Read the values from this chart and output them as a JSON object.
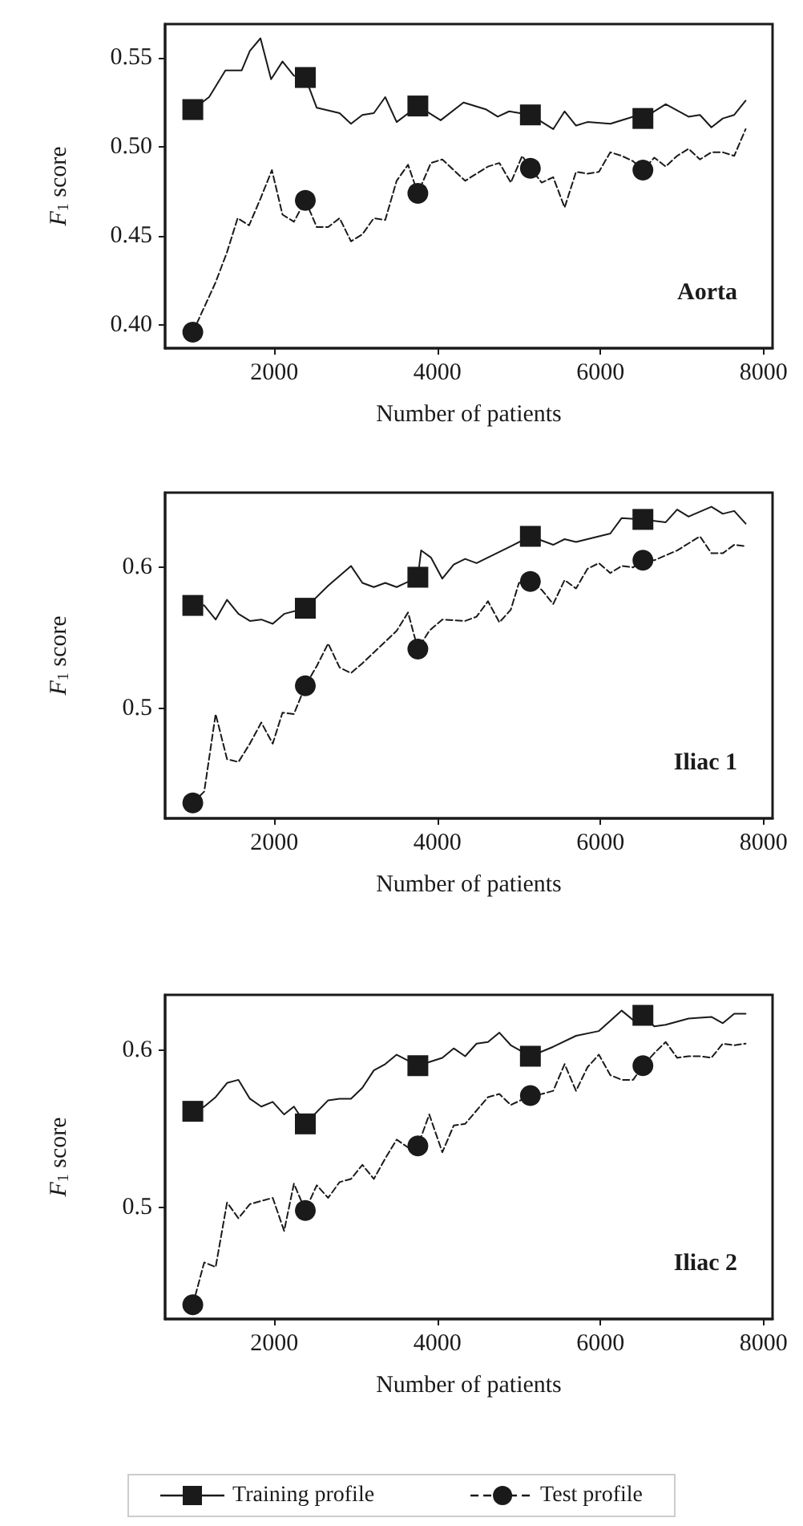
{
  "chart_data": [
    {
      "type": "line",
      "xlabel": "Number of patients",
      "ylabel": "F$_{1}$ score",
      "annotations": [
        "Aorta"
      ],
      "xlim": [
        660,
        8110
      ],
      "xticks": [
        2000,
        4000,
        6000,
        8000
      ],
      "ylim": [
        0.387,
        0.569
      ],
      "yticks": [
        {
          "value": 0.4,
          "label": "0.40"
        },
        {
          "value": 0.45,
          "label": "0.45"
        },
        {
          "value": 0.5,
          "label": "0.50"
        },
        {
          "value": 0.55,
          "label": "0.55"
        }
      ],
      "series": [
        {
          "color": "#1a1a1a",
          "line_style": "solid",
          "x": [
            1000,
            1200,
            1400,
            1600,
            1700,
            1830,
            1960,
            2100,
            2240,
            2380,
            2520,
            2800,
            2940,
            3080,
            3220,
            3360,
            3500,
            3760,
            4040,
            4320,
            4600,
            4740,
            4880,
            5140,
            5420,
            5560,
            5700,
            5840,
            6120,
            6400,
            6520,
            6800,
            7080,
            7220,
            7360,
            7500,
            7640,
            7780
          ],
          "values": [
            0.521,
            0.528,
            0.543,
            0.543,
            0.554,
            0.561,
            0.538,
            0.548,
            0.54,
            0.539,
            0.522,
            0.519,
            0.513,
            0.518,
            0.519,
            0.528,
            0.514,
            0.523,
            0.515,
            0.525,
            0.521,
            0.517,
            0.52,
            0.518,
            0.51,
            0.52,
            0.512,
            0.514,
            0.513,
            0.517,
            0.516,
            0.524,
            0.517,
            0.518,
            0.511,
            0.516,
            0.518,
            0.526
          ]
        },
        {
          "color": "#1a1a1a",
          "line_style": "dashed",
          "x": [
            1000,
            1140,
            1280,
            1420,
            1550,
            1690,
            1830,
            1970,
            2100,
            2240,
            2380,
            2520,
            2660,
            2800,
            2940,
            3080,
            3220,
            3360,
            3500,
            3640,
            3760,
            3920,
            4060,
            4340,
            4620,
            4760,
            4900,
            5040,
            5140,
            5280,
            5420,
            5560,
            5700,
            5840,
            5980,
            6120,
            6260,
            6400,
            6520,
            6660,
            6800,
            6940,
            7080,
            7220,
            7360,
            7500,
            7640,
            7780
          ],
          "values": [
            0.396,
            0.41,
            0.424,
            0.441,
            0.46,
            0.456,
            0.471,
            0.487,
            0.462,
            0.458,
            0.47,
            0.455,
            0.455,
            0.46,
            0.447,
            0.451,
            0.46,
            0.459,
            0.481,
            0.49,
            0.474,
            0.491,
            0.493,
            0.481,
            0.489,
            0.491,
            0.48,
            0.495,
            0.488,
            0.48,
            0.483,
            0.466,
            0.486,
            0.485,
            0.486,
            0.497,
            0.495,
            0.492,
            0.487,
            0.494,
            0.489,
            0.495,
            0.499,
            0.493,
            0.497,
            0.497,
            0.495,
            0.51
          ]
        },
        {
          "type": "scatter",
          "color": "#1a1a1a",
          "marker": "square",
          "x": [
            1000,
            2380,
            3760,
            5140,
            6520
          ],
          "values": [
            0.521,
            0.539,
            0.523,
            0.518,
            0.516
          ]
        },
        {
          "type": "scatter",
          "color": "#1a1a1a",
          "marker": "circle",
          "x": [
            1000,
            2380,
            3760,
            5140,
            6520
          ],
          "values": [
            0.396,
            0.47,
            0.474,
            0.488,
            0.487
          ]
        }
      ]
    },
    {
      "type": "line",
      "xlabel": "Number of patients",
      "ylabel": "F$_{1}$ score",
      "annotations": [
        "Iliac 1"
      ],
      "xlim": [
        660,
        8110
      ],
      "xticks": [
        2000,
        4000,
        6000,
        8000
      ],
      "ylim": [
        0.422,
        0.653
      ],
      "yticks": [
        {
          "value": 0.5,
          "label": "0.5"
        },
        {
          "value": 0.6,
          "label": "0.6"
        }
      ],
      "series": [
        {
          "color": "#1a1a1a",
          "line_style": "solid",
          "x": [
            1000,
            1140,
            1280,
            1420,
            1560,
            1700,
            1840,
            1980,
            2120,
            2380,
            2660,
            2940,
            3080,
            3220,
            3360,
            3500,
            3760,
            3800,
            3920,
            4060,
            4200,
            4340,
            4480,
            4620,
            4900,
            5140,
            5420,
            5560,
            5700,
            6120,
            6260,
            6520,
            6800,
            6940,
            7080,
            7360,
            7500,
            7640,
            7780
          ],
          "values": [
            0.573,
            0.573,
            0.563,
            0.577,
            0.567,
            0.562,
            0.563,
            0.56,
            0.567,
            0.571,
            0.587,
            0.601,
            0.589,
            0.586,
            0.589,
            0.586,
            0.593,
            0.612,
            0.607,
            0.592,
            0.602,
            0.606,
            0.603,
            0.607,
            0.615,
            0.622,
            0.616,
            0.62,
            0.618,
            0.624,
            0.635,
            0.634,
            0.632,
            0.641,
            0.636,
            0.643,
            0.638,
            0.64,
            0.631
          ]
        },
        {
          "color": "#1a1a1a",
          "line_style": "dashed",
          "x": [
            1000,
            1140,
            1280,
            1420,
            1560,
            1700,
            1840,
            1980,
            2100,
            2240,
            2380,
            2520,
            2660,
            2800,
            2940,
            3080,
            3500,
            3640,
            3760,
            3900,
            4060,
            4340,
            4480,
            4620,
            4760,
            4900,
            5000,
            5140,
            5280,
            5420,
            5560,
            5700,
            5840,
            5980,
            6120,
            6260,
            6400,
            6520,
            6660,
            6940,
            7220,
            7360,
            7500,
            7640,
            7780
          ],
          "values": [
            0.433,
            0.441,
            0.496,
            0.464,
            0.462,
            0.475,
            0.49,
            0.475,
            0.497,
            0.496,
            0.516,
            0.53,
            0.546,
            0.529,
            0.525,
            0.532,
            0.555,
            0.568,
            0.542,
            0.555,
            0.563,
            0.562,
            0.565,
            0.576,
            0.561,
            0.57,
            0.589,
            0.59,
            0.584,
            0.574,
            0.591,
            0.585,
            0.599,
            0.603,
            0.596,
            0.601,
            0.6,
            0.605,
            0.605,
            0.612,
            0.622,
            0.61,
            0.61,
            0.616,
            0.615
          ]
        },
        {
          "type": "scatter",
          "color": "#1a1a1a",
          "marker": "square",
          "x": [
            1000,
            2380,
            3760,
            5140,
            6520
          ],
          "values": [
            0.573,
            0.571,
            0.593,
            0.622,
            0.634
          ]
        },
        {
          "type": "scatter",
          "color": "#1a1a1a",
          "marker": "circle",
          "x": [
            1000,
            2380,
            3760,
            5140,
            6520
          ],
          "values": [
            0.433,
            0.516,
            0.542,
            0.59,
            0.605
          ]
        }
      ]
    },
    {
      "type": "line",
      "xlabel": "Number of patients",
      "ylabel": "F$_{1}$ score",
      "annotations": [
        "Iliac 2"
      ],
      "xlim": [
        660,
        8110
      ],
      "xticks": [
        2000,
        4000,
        6000,
        8000
      ],
      "ylim": [
        0.429,
        0.635
      ],
      "yticks": [
        {
          "value": 0.5,
          "label": "0.5"
        },
        {
          "value": 0.6,
          "label": "0.6"
        }
      ],
      "legend": "bottom",
      "series": [
        {
          "name": "Training profile",
          "color": "#1a1a1a",
          "line_style": "solid",
          "x": [
            1000,
            1140,
            1280,
            1420,
            1560,
            1700,
            1840,
            1980,
            2120,
            2240,
            2380,
            2660,
            2800,
            2940,
            3080,
            3220,
            3360,
            3500,
            3760,
            4060,
            4200,
            4340,
            4480,
            4620,
            4760,
            4900,
            5140,
            5420,
            5700,
            5980,
            6260,
            6400,
            6520,
            6660,
            6800,
            7080,
            7360,
            7500,
            7640,
            7780
          ],
          "values": [
            0.561,
            0.564,
            0.57,
            0.579,
            0.581,
            0.569,
            0.564,
            0.567,
            0.559,
            0.564,
            0.553,
            0.568,
            0.569,
            0.569,
            0.576,
            0.587,
            0.591,
            0.597,
            0.59,
            0.595,
            0.601,
            0.596,
            0.604,
            0.605,
            0.611,
            0.603,
            0.596,
            0.602,
            0.609,
            0.612,
            0.625,
            0.619,
            0.622,
            0.615,
            0.616,
            0.62,
            0.621,
            0.617,
            0.623,
            0.623
          ]
        },
        {
          "name": "Test profile",
          "color": "#1a1a1a",
          "line_style": "dashed",
          "x": [
            1000,
            1140,
            1280,
            1420,
            1560,
            1700,
            1980,
            2120,
            2240,
            2380,
            2520,
            2660,
            2800,
            2940,
            3080,
            3220,
            3360,
            3500,
            3640,
            3760,
            3900,
            4060,
            4200,
            4340,
            4620,
            4760,
            4900,
            5140,
            5280,
            5420,
            5560,
            5700,
            5840,
            5980,
            6120,
            6260,
            6400,
            6520,
            6660,
            6800,
            6940,
            7080,
            7220,
            7360,
            7500,
            7640,
            7780
          ],
          "values": [
            0.438,
            0.465,
            0.462,
            0.503,
            0.493,
            0.502,
            0.506,
            0.485,
            0.515,
            0.498,
            0.514,
            0.506,
            0.516,
            0.518,
            0.527,
            0.518,
            0.531,
            0.543,
            0.538,
            0.539,
            0.559,
            0.535,
            0.552,
            0.553,
            0.57,
            0.572,
            0.565,
            0.571,
            0.572,
            0.574,
            0.591,
            0.574,
            0.589,
            0.597,
            0.584,
            0.581,
            0.581,
            0.59,
            0.598,
            0.605,
            0.595,
            0.596,
            0.596,
            0.595,
            0.604,
            0.603,
            0.604
          ]
        },
        {
          "type": "scatter",
          "color": "#1a1a1a",
          "marker": "square",
          "x": [
            1000,
            2380,
            3760,
            5140,
            6520
          ],
          "values": [
            0.561,
            0.553,
            0.59,
            0.596,
            0.622
          ]
        },
        {
          "type": "scatter",
          "color": "#1a1a1a",
          "marker": "circle",
          "x": [
            1000,
            2380,
            3760,
            5140,
            6520
          ],
          "values": [
            0.438,
            0.498,
            0.539,
            0.571,
            0.59
          ]
        }
      ]
    }
  ]
}
